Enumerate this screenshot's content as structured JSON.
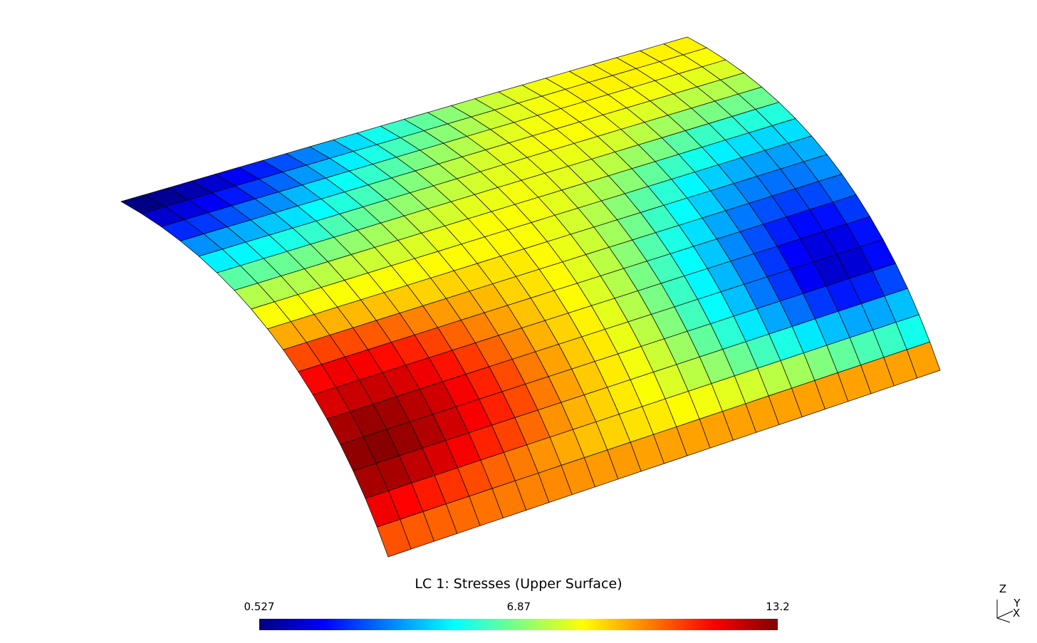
{
  "plot": {
    "title": "LC   1: Stresses (Upper Surface)",
    "colorbar": {
      "range": [
        0.527,
        13.2
      ],
      "ticks": [
        0.527,
        6.87,
        13.2
      ]
    },
    "elements": {
      "values": [
        [
          0.6,
          0.8,
          1.1,
          1.5,
          2.0,
          2.5,
          3.1,
          3.7,
          4.3,
          4.9,
          5.5,
          6.0,
          6.5,
          7.0,
          7.4,
          7.8,
          8.1,
          8.3,
          8.5,
          8.6,
          8.6,
          8.6,
          8.6,
          8.6
        ],
        [
          1.5,
          1.7,
          2.0,
          2.4,
          2.9,
          3.4,
          4.0,
          4.5,
          5.1,
          5.6,
          6.1,
          6.6,
          7.0,
          7.4,
          7.8,
          8.1,
          8.3,
          8.5,
          8.6,
          8.6,
          8.6,
          8.5,
          8.5,
          8.4
        ],
        [
          2.6,
          2.8,
          3.1,
          3.5,
          3.9,
          4.4,
          4.9,
          5.4,
          5.9,
          6.3,
          6.8,
          7.2,
          7.5,
          7.9,
          8.1,
          8.3,
          8.5,
          8.5,
          8.5,
          8.4,
          8.3,
          8.2,
          8.1,
          8.0
        ],
        [
          3.9,
          4.1,
          4.3,
          4.6,
          4.9,
          5.3,
          5.7,
          6.1,
          6.5,
          6.9,
          7.3,
          7.6,
          7.9,
          8.1,
          8.3,
          8.4,
          8.4,
          8.3,
          8.2,
          8.0,
          7.8,
          7.6,
          7.5,
          7.4
        ],
        [
          5.1,
          5.2,
          5.4,
          5.6,
          5.9,
          6.2,
          6.5,
          6.8,
          7.1,
          7.4,
          7.7,
          7.9,
          8.1,
          8.2,
          8.2,
          8.2,
          8.1,
          7.9,
          7.6,
          7.3,
          7.0,
          6.8,
          6.7,
          6.6
        ],
        [
          6.4,
          6.5,
          6.6,
          6.7,
          6.9,
          7.1,
          7.3,
          7.5,
          7.7,
          7.9,
          8.1,
          8.2,
          8.3,
          8.2,
          8.1,
          7.9,
          7.6,
          7.2,
          6.8,
          6.4,
          6.0,
          5.8,
          5.7,
          5.7
        ],
        [
          7.5,
          7.5,
          7.5,
          7.6,
          7.7,
          7.8,
          7.9,
          8.0,
          8.2,
          8.3,
          8.4,
          8.4,
          8.3,
          8.1,
          7.8,
          7.4,
          7.0,
          6.5,
          6.0,
          5.5,
          5.1,
          4.9,
          4.8,
          4.9
        ],
        [
          8.4,
          8.4,
          8.4,
          8.4,
          8.4,
          8.4,
          8.4,
          8.5,
          8.5,
          8.5,
          8.5,
          8.4,
          8.2,
          7.9,
          7.5,
          7.0,
          6.4,
          5.8,
          5.2,
          4.7,
          4.3,
          4.1,
          4.1,
          4.3
        ],
        [
          9.5,
          9.5,
          9.4,
          9.3,
          9.2,
          9.1,
          9.0,
          9.0,
          8.9,
          8.8,
          8.7,
          8.5,
          8.2,
          7.8,
          7.3,
          6.7,
          6.0,
          5.3,
          4.7,
          4.1,
          3.7,
          3.5,
          3.6,
          3.9
        ],
        [
          10.7,
          10.8,
          10.7,
          10.5,
          10.3,
          10.0,
          9.7,
          9.5,
          9.3,
          9.0,
          8.8,
          8.5,
          8.1,
          7.6,
          7.0,
          6.3,
          5.6,
          4.9,
          4.2,
          3.6,
          3.1,
          2.9,
          3.0,
          3.4
        ],
        [
          11.6,
          11.8,
          11.7,
          11.5,
          11.2,
          10.8,
          10.4,
          10.0,
          9.6,
          9.2,
          8.9,
          8.5,
          8.0,
          7.5,
          6.8,
          6.1,
          5.3,
          4.6,
          3.8,
          3.1,
          2.5,
          2.2,
          2.3,
          2.8
        ],
        [
          12.1,
          12.3,
          12.3,
          12.1,
          11.8,
          11.4,
          10.9,
          10.4,
          9.9,
          9.4,
          9.0,
          8.6,
          8.1,
          7.5,
          6.8,
          6.0,
          5.2,
          4.4,
          3.6,
          2.8,
          2.1,
          1.7,
          1.8,
          2.3
        ],
        [
          12.7,
          12.9,
          12.8,
          12.5,
          12.2,
          11.7,
          11.2,
          10.7,
          10.1,
          9.6,
          9.1,
          8.7,
          8.2,
          7.6,
          6.9,
          6.1,
          5.3,
          4.5,
          3.6,
          2.8,
          2.0,
          1.5,
          1.6,
          2.2
        ],
        [
          13.0,
          13.1,
          12.9,
          12.6,
          12.2,
          11.7,
          11.2,
          10.7,
          10.1,
          9.6,
          9.1,
          8.7,
          8.3,
          7.8,
          7.2,
          6.5,
          5.8,
          5.0,
          4.2,
          3.5,
          2.8,
          2.4,
          2.5,
          3.0
        ],
        [
          12.7,
          12.7,
          12.4,
          12.1,
          11.7,
          11.2,
          10.8,
          10.3,
          9.8,
          9.4,
          9.0,
          8.7,
          8.4,
          8.0,
          7.6,
          7.1,
          6.6,
          6.1,
          5.6,
          5.0,
          4.5,
          4.2,
          4.2,
          4.5
        ],
        [
          11.8,
          11.6,
          11.3,
          11.0,
          10.7,
          10.4,
          10.1,
          9.8,
          9.5,
          9.2,
          9.0,
          8.8,
          8.7,
          8.5,
          8.3,
          8.1,
          7.9,
          7.6,
          7.3,
          6.9,
          6.5,
          6.2,
          6.0,
          5.5
        ],
        [
          10.6,
          10.5,
          10.4,
          10.3,
          10.2,
          10.1,
          10.0,
          9.9,
          9.8,
          9.7,
          9.7,
          9.6,
          9.6,
          9.6,
          9.6,
          9.6,
          9.6,
          9.6,
          9.6,
          9.6,
          9.6,
          9.6,
          9.6,
          9.6
        ]
      ]
    }
  },
  "triad": {
    "z": "Z",
    "y": "Y",
    "x": "X"
  }
}
